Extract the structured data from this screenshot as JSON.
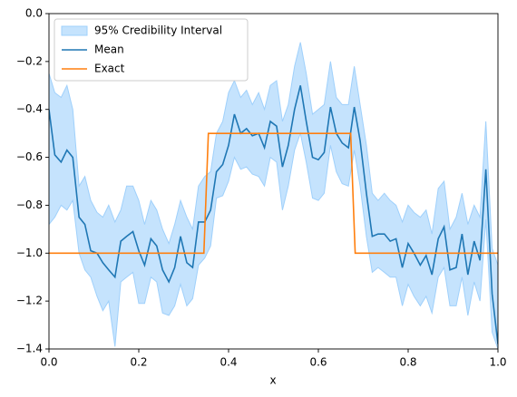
{
  "chart_data": {
    "type": "line",
    "x_label": "x",
    "xlim": [
      0,
      1
    ],
    "ylim": [
      -1.4,
      0
    ],
    "xticks": [
      {
        "value": 0,
        "label": "0.0"
      },
      0.2,
      0.4,
      0.6,
      0.8,
      {
        "value": 1,
        "label": "1.0"
      }
    ],
    "yticks": [
      {
        "value": -1.4,
        "label": "−1.4"
      },
      {
        "value": -1.2,
        "label": "−1.2"
      },
      {
        "value": -1,
        "label": "−1.0"
      },
      {
        "value": -0.8,
        "label": "−0.8"
      },
      {
        "value": -0.6,
        "label": "−0.6"
      },
      {
        "value": -0.4,
        "label": "−0.4"
      },
      {
        "value": -0.2,
        "label": "−0.2"
      },
      {
        "value": 0,
        "label": "0.0"
      }
    ],
    "legend": "upper left",
    "series": [
      {
        "name": "95% Credibility Interval",
        "kind": "band",
        "color": "#9fd0fb",
        "x": [
          0,
          0.013,
          0.027,
          0.04,
          0.053,
          0.067,
          0.08,
          0.093,
          0.107,
          0.12,
          0.133,
          0.147,
          0.16,
          0.173,
          0.187,
          0.2,
          0.213,
          0.227,
          0.24,
          0.253,
          0.267,
          0.28,
          0.293,
          0.307,
          0.32,
          0.333,
          0.347,
          0.36,
          0.373,
          0.387,
          0.4,
          0.413,
          0.427,
          0.44,
          0.453,
          0.467,
          0.48,
          0.493,
          0.507,
          0.52,
          0.533,
          0.547,
          0.56,
          0.573,
          0.587,
          0.6,
          0.613,
          0.627,
          0.64,
          0.653,
          0.667,
          0.68,
          0.693,
          0.707,
          0.72,
          0.733,
          0.747,
          0.76,
          0.773,
          0.787,
          0.8,
          0.813,
          0.827,
          0.84,
          0.853,
          0.867,
          0.88,
          0.893,
          0.907,
          0.92,
          0.933,
          0.947,
          0.96,
          0.973,
          0.987,
          1.0
        ],
        "upper": [
          -0.25,
          -0.33,
          -0.35,
          -0.3,
          -0.4,
          -0.72,
          -0.68,
          -0.78,
          -0.83,
          -0.85,
          -0.8,
          -0.87,
          -0.82,
          -0.72,
          -0.72,
          -0.78,
          -0.88,
          -0.78,
          -0.82,
          -0.9,
          -0.96,
          -0.88,
          -0.78,
          -0.85,
          -0.9,
          -0.72,
          -0.68,
          -0.66,
          -0.5,
          -0.45,
          -0.33,
          -0.28,
          -0.35,
          -0.32,
          -0.38,
          -0.33,
          -0.4,
          -0.3,
          -0.28,
          -0.45,
          -0.38,
          -0.22,
          -0.12,
          -0.25,
          -0.42,
          -0.4,
          -0.38,
          -0.2,
          -0.35,
          -0.38,
          -0.38,
          -0.22,
          -0.38,
          -0.55,
          -0.75,
          -0.78,
          -0.75,
          -0.78,
          -0.8,
          -0.87,
          -0.8,
          -0.83,
          -0.85,
          -0.82,
          -0.92,
          -0.73,
          -0.7,
          -0.9,
          -0.85,
          -0.75,
          -0.88,
          -0.8,
          -0.85,
          -0.45,
          -0.98,
          -1.05
        ],
        "lower": [
          -0.88,
          -0.85,
          -0.8,
          -0.82,
          -0.78,
          -1.0,
          -1.07,
          -1.1,
          -1.18,
          -1.24,
          -1.2,
          -1.39,
          -1.12,
          -1.1,
          -1.08,
          -1.21,
          -1.21,
          -1.1,
          -1.12,
          -1.25,
          -1.26,
          -1.22,
          -1.13,
          -1.22,
          -1.19,
          -1.05,
          -1.02,
          -0.97,
          -0.77,
          -0.76,
          -0.7,
          -0.6,
          -0.65,
          -0.64,
          -0.67,
          -0.68,
          -0.72,
          -0.6,
          -0.62,
          -0.82,
          -0.72,
          -0.57,
          -0.5,
          -0.62,
          -0.77,
          -0.78,
          -0.75,
          -0.55,
          -0.66,
          -0.71,
          -0.72,
          -0.57,
          -0.72,
          -0.93,
          -1.08,
          -1.06,
          -1.08,
          -1.1,
          -1.1,
          -1.22,
          -1.13,
          -1.18,
          -1.22,
          -1.18,
          -1.25,
          -1.1,
          -1.06,
          -1.22,
          -1.22,
          -1.1,
          -1.26,
          -1.12,
          -1.2,
          -0.86,
          -1.33,
          -1.4
        ]
      },
      {
        "name": "Mean",
        "kind": "line",
        "color": "#1f77b4",
        "x": [
          0,
          0.013,
          0.027,
          0.04,
          0.053,
          0.067,
          0.08,
          0.093,
          0.107,
          0.12,
          0.133,
          0.147,
          0.16,
          0.173,
          0.187,
          0.2,
          0.213,
          0.227,
          0.24,
          0.253,
          0.267,
          0.28,
          0.293,
          0.307,
          0.32,
          0.333,
          0.347,
          0.36,
          0.373,
          0.387,
          0.4,
          0.413,
          0.427,
          0.44,
          0.453,
          0.467,
          0.48,
          0.493,
          0.507,
          0.52,
          0.533,
          0.547,
          0.56,
          0.573,
          0.587,
          0.6,
          0.613,
          0.627,
          0.64,
          0.653,
          0.667,
          0.68,
          0.693,
          0.707,
          0.72,
          0.733,
          0.747,
          0.76,
          0.773,
          0.787,
          0.8,
          0.813,
          0.827,
          0.84,
          0.853,
          0.867,
          0.88,
          0.893,
          0.907,
          0.92,
          0.933,
          0.947,
          0.96,
          0.973,
          0.987,
          1.0
        ],
        "values": [
          -0.4,
          -0.59,
          -0.62,
          -0.57,
          -0.6,
          -0.85,
          -0.88,
          -0.99,
          -1.0,
          -1.04,
          -1.07,
          -1.1,
          -0.95,
          -0.93,
          -0.91,
          -0.99,
          -1.05,
          -0.94,
          -0.97,
          -1.07,
          -1.12,
          -1.06,
          -0.93,
          -1.04,
          -1.06,
          -0.87,
          -0.87,
          -0.82,
          -0.66,
          -0.63,
          -0.55,
          -0.42,
          -0.5,
          -0.48,
          -0.51,
          -0.5,
          -0.56,
          -0.45,
          -0.47,
          -0.64,
          -0.55,
          -0.4,
          -0.3,
          -0.45,
          -0.6,
          -0.61,
          -0.58,
          -0.39,
          -0.5,
          -0.54,
          -0.56,
          -0.39,
          -0.53,
          -0.75,
          -0.93,
          -0.92,
          -0.92,
          -0.95,
          -0.94,
          -1.06,
          -0.96,
          -1.0,
          -1.05,
          -1.01,
          -1.09,
          -0.94,
          -0.89,
          -1.07,
          -1.06,
          -0.92,
          -1.09,
          -0.95,
          -1.03,
          -0.65,
          -1.17,
          -1.38
        ]
      },
      {
        "name": "Exact",
        "kind": "line",
        "color": "#ff7f0e",
        "x": [
          0,
          0.345,
          0.355,
          0.672,
          0.682,
          1
        ],
        "values": [
          -1,
          -1,
          -0.5,
          -0.5,
          -1,
          -1
        ]
      }
    ]
  }
}
